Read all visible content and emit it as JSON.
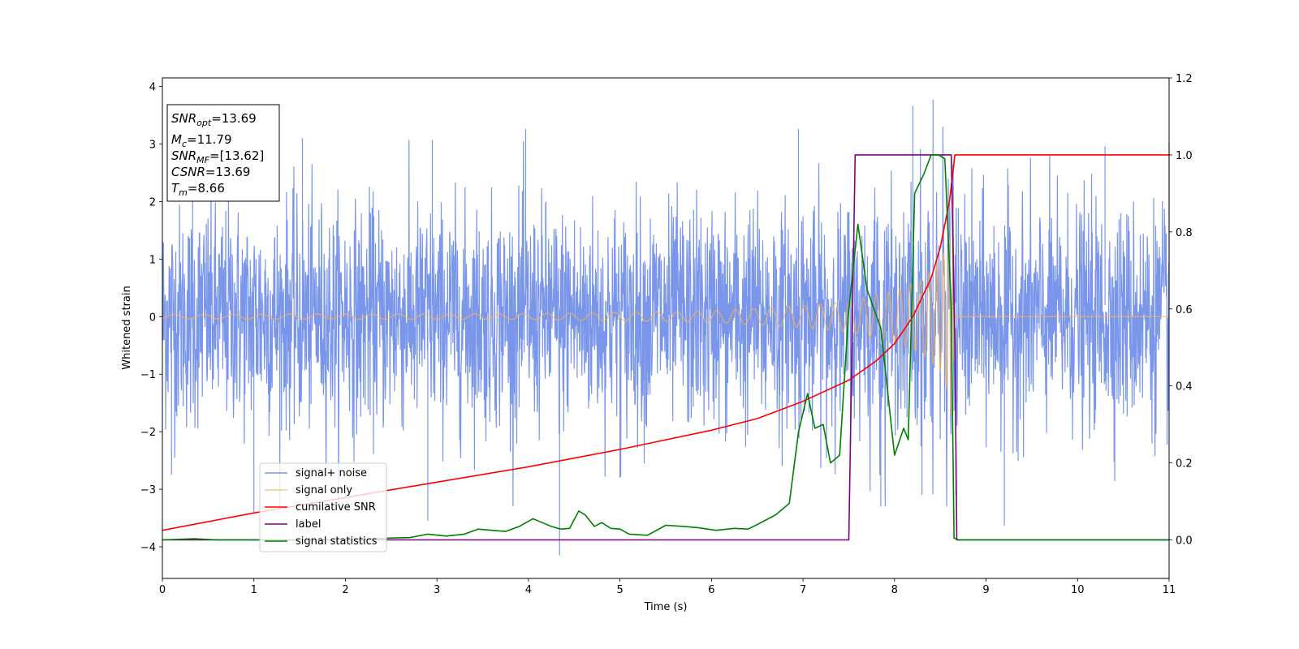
{
  "chart_data": {
    "type": "line",
    "xlabel": "Time (s)",
    "ylabel": "Whitened strain",
    "xlim": [
      0,
      11
    ],
    "ylim": [
      -4.55,
      4.15
    ],
    "y2lim": [
      -0.1,
      1.2
    ],
    "x_ticks": [
      "0",
      "1",
      "2",
      "3",
      "4",
      "5",
      "6",
      "7",
      "8",
      "9",
      "10",
      "11"
    ],
    "y_ticks": [
      "−4",
      "−3",
      "−2",
      "−1",
      "0",
      "1",
      "2",
      "3",
      "4"
    ],
    "y2_ticks": [
      "0.0",
      "0.2",
      "0.4",
      "0.6",
      "0.8",
      "1.0",
      "1.2"
    ],
    "grid": false,
    "legend_placement": "lower-left",
    "annotation": {
      "snr_opt": {
        "main": "SNR",
        "sub": "opt",
        "value": "=13.69"
      },
      "mc": {
        "main": "M",
        "sub": "c",
        "value": "=11.79"
      },
      "snr_mf": {
        "main": "SNR",
        "sub": "MF",
        "value": "=[13.62]"
      },
      "csnr": {
        "main": "CSNR",
        "value": "=13.69"
      },
      "tm": {
        "main": "T",
        "sub": "m",
        "value": "=8.66"
      }
    },
    "series": [
      {
        "name": "signal+ noise",
        "axis": "left",
        "color": "#4169e1",
        "kind": "noise",
        "envelope_peaks": [
          [
            0.33,
            3.26
          ],
          [
            1.53,
            3.1
          ],
          [
            2.95,
            3.07
          ],
          [
            3.97,
            3.26
          ],
          [
            6.95,
            3.26
          ],
          [
            8.2,
            3.66
          ],
          [
            8.42,
            3.77
          ],
          [
            10.3,
            2.96
          ],
          [
            11.0,
            3.04
          ]
        ],
        "envelope_troughs": [
          [
            0.1,
            -2.75
          ],
          [
            1.0,
            -3.4
          ],
          [
            2.9,
            -3.55
          ],
          [
            4.34,
            -4.15
          ],
          [
            5.0,
            -2.8
          ],
          [
            7.85,
            -3.3
          ],
          [
            8.3,
            -3.1
          ],
          [
            8.67,
            -3.1
          ],
          [
            9.2,
            -3.63
          ]
        ]
      },
      {
        "name": "signal only",
        "axis": "left",
        "color": "#ffb347",
        "kind": "chirp",
        "merger_time": 8.66,
        "amplitude_points": [
          [
            0,
            0.04
          ],
          [
            4.0,
            0.05
          ],
          [
            6.0,
            0.1
          ],
          [
            7.0,
            0.19
          ],
          [
            7.5,
            0.27
          ],
          [
            8.0,
            0.45
          ],
          [
            8.3,
            0.65
          ],
          [
            8.5,
            0.95
          ],
          [
            8.6,
            1.4
          ],
          [
            8.64,
            2.0
          ],
          [
            8.66,
            0.0
          ],
          [
            11,
            0.0
          ]
        ]
      },
      {
        "name": "cumilative SNR",
        "axis": "right",
        "color": "#ff0000",
        "x": [
          0,
          1,
          2,
          3,
          4,
          5,
          6,
          6.5,
          7,
          7.5,
          7.8,
          8.0,
          8.2,
          8.4,
          8.5,
          8.6,
          8.64,
          8.66,
          11
        ],
        "y": [
          0.025,
          0.07,
          0.11,
          0.15,
          0.19,
          0.235,
          0.285,
          0.315,
          0.36,
          0.415,
          0.465,
          0.51,
          0.58,
          0.68,
          0.76,
          0.88,
          0.96,
          1.0,
          1.0
        ]
      },
      {
        "name": "label",
        "axis": "right",
        "color": "#800080",
        "x": [
          0,
          7.5,
          7.57,
          8.62,
          8.66,
          8.68,
          11
        ],
        "y": [
          0.0,
          0.0,
          1.0,
          1.0,
          0.5,
          0.0,
          0.0
        ]
      },
      {
        "name": "signal statistics",
        "axis": "right",
        "color": "#008000",
        "x": [
          0,
          0.35,
          0.6,
          1.0,
          1.5,
          2.0,
          2.5,
          2.7,
          2.9,
          3.1,
          3.3,
          3.45,
          3.6,
          3.75,
          3.9,
          4.05,
          4.15,
          4.25,
          4.35,
          4.45,
          4.55,
          4.62,
          4.72,
          4.8,
          4.9,
          5.0,
          5.1,
          5.3,
          5.5,
          5.7,
          5.85,
          6.05,
          6.25,
          6.4,
          6.5,
          6.7,
          6.85,
          6.95,
          7.05,
          7.13,
          7.22,
          7.3,
          7.4,
          7.5,
          7.6,
          7.7,
          7.85,
          8.0,
          8.1,
          8.15,
          8.22,
          8.32,
          8.4,
          8.48,
          8.55,
          8.62,
          8.65,
          8.7,
          9.0,
          10.0,
          11.0
        ],
        "y": [
          0.0,
          0.003,
          0.0,
          0.0,
          0.0,
          0.0,
          0.005,
          0.006,
          0.015,
          0.01,
          0.015,
          0.028,
          0.025,
          0.022,
          0.035,
          0.055,
          0.045,
          0.035,
          0.028,
          0.03,
          0.075,
          0.065,
          0.035,
          0.045,
          0.03,
          0.028,
          0.015,
          0.012,
          0.038,
          0.035,
          0.032,
          0.025,
          0.03,
          0.028,
          0.04,
          0.065,
          0.095,
          0.28,
          0.38,
          0.29,
          0.3,
          0.2,
          0.22,
          0.6,
          0.82,
          0.65,
          0.55,
          0.22,
          0.29,
          0.26,
          0.9,
          0.95,
          1.0,
          1.0,
          0.99,
          0.6,
          0.005,
          0.0,
          0.0,
          0.0,
          0.0
        ]
      }
    ]
  }
}
